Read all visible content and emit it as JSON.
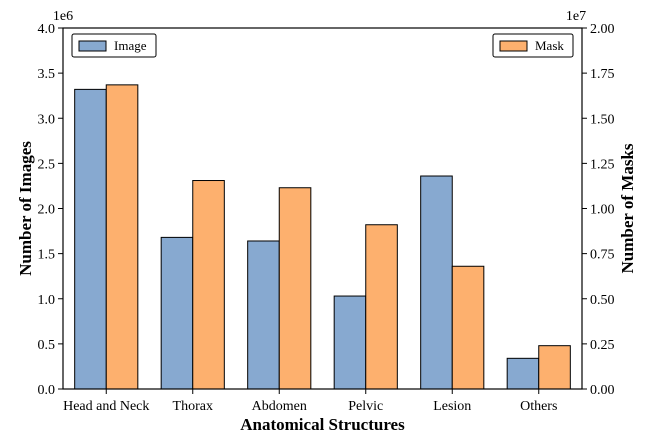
{
  "chart_data": {
    "type": "bar",
    "categories": [
      "Head and Neck",
      "Thorax",
      "Abdomen",
      "Pelvic",
      "Lesion",
      "Others"
    ],
    "xlabel": "Anatomical Structures",
    "series": [
      {
        "name": "Image",
        "axis": "left",
        "color": "#87A9D0",
        "values": [
          3.32,
          1.68,
          1.64,
          1.03,
          2.36,
          0.34
        ]
      },
      {
        "name": "Mask",
        "axis": "right",
        "color": "#FDB06E",
        "values": [
          1.685,
          1.155,
          1.115,
          0.91,
          0.68,
          0.24
        ]
      }
    ],
    "left_axis": {
      "label": "Number of Images",
      "multiplier": "1e6",
      "ylim": [
        0,
        4.0
      ],
      "ticks": [
        "0.0",
        "0.5",
        "1.0",
        "1.5",
        "2.0",
        "2.5",
        "3.0",
        "3.5",
        "4.0"
      ]
    },
    "right_axis": {
      "label": "Number of Masks",
      "multiplier": "1e7",
      "ylim": [
        0,
        2.0
      ],
      "ticks": [
        "0.00",
        "0.25",
        "0.50",
        "0.75",
        "1.00",
        "1.25",
        "1.50",
        "1.75",
        "2.00"
      ]
    },
    "legend": {
      "image_placement": "top-left",
      "mask_placement": "top-right"
    },
    "grid": false
  }
}
